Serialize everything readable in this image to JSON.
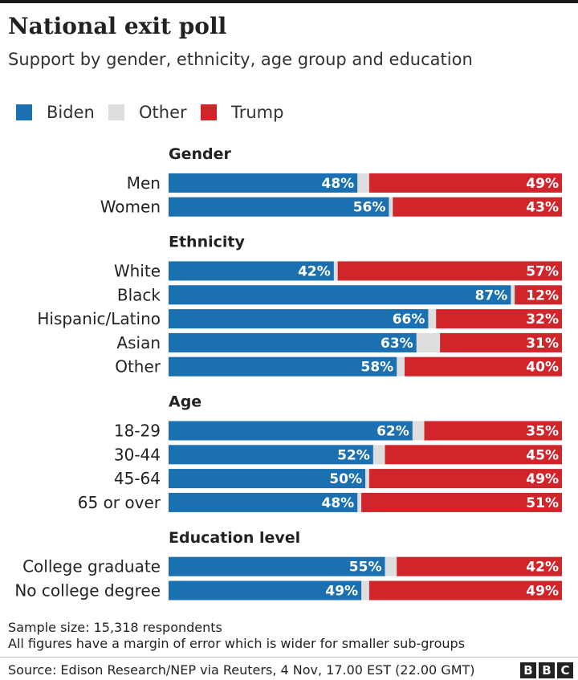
{
  "title": "National exit poll",
  "subtitle": "Support by gender, ethnicity, age group and education",
  "colors": {
    "biden": "#1a70b0",
    "other": "#dedede",
    "trump": "#d1252c",
    "text": "#222222"
  },
  "legend": [
    {
      "label": "Biden",
      "key": "biden"
    },
    {
      "label": "Other",
      "key": "other"
    },
    {
      "label": "Trump",
      "key": "trump"
    }
  ],
  "chart_data": {
    "type": "bar",
    "orientation": "horizontal",
    "stacked": true,
    "xlim": [
      0,
      100
    ],
    "series": [
      {
        "name": "Biden",
        "key": "biden"
      },
      {
        "name": "Other",
        "key": "other"
      },
      {
        "name": "Trump",
        "key": "trump"
      }
    ],
    "groups": [
      {
        "title": "Gender",
        "rows": [
          {
            "label": "Men",
            "biden": 48,
            "trump": 49
          },
          {
            "label": "Women",
            "biden": 56,
            "trump": 43
          }
        ]
      },
      {
        "title": "Ethnicity",
        "rows": [
          {
            "label": "White",
            "biden": 42,
            "trump": 57
          },
          {
            "label": "Black",
            "biden": 87,
            "trump": 12
          },
          {
            "label": "Hispanic/Latino",
            "biden": 66,
            "trump": 32
          },
          {
            "label": "Asian",
            "biden": 63,
            "trump": 31
          },
          {
            "label": "Other",
            "biden": 58,
            "trump": 40
          }
        ]
      },
      {
        "title": "Age",
        "rows": [
          {
            "label": "18-29",
            "biden": 62,
            "trump": 35
          },
          {
            "label": "30-44",
            "biden": 52,
            "trump": 45
          },
          {
            "label": "45-64",
            "biden": 50,
            "trump": 49
          },
          {
            "label": "65 or over",
            "biden": 48,
            "trump": 51
          }
        ]
      },
      {
        "title": "Education level",
        "rows": [
          {
            "label": "College graduate",
            "biden": 55,
            "trump": 42
          },
          {
            "label": "No college degree",
            "biden": 49,
            "trump": 49
          }
        ]
      }
    ]
  },
  "footer": {
    "sample": "Sample size: 15,318 respondents",
    "note": "All figures have a margin of error which is wider for smaller sub-groups",
    "source": "Source: Edison Research/NEP via Reuters,  4 Nov, 17.00 EST (22.00 GMT)",
    "logo_letters": [
      "B",
      "B",
      "C"
    ]
  }
}
